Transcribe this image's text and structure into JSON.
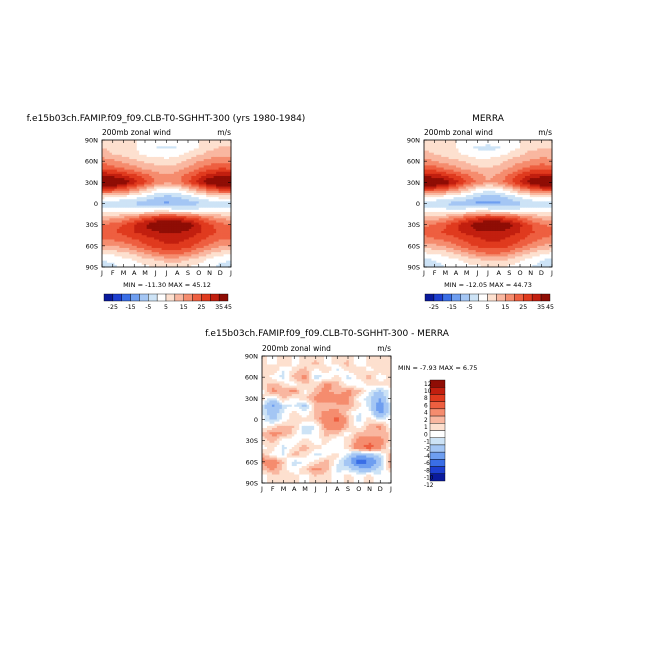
{
  "chart_data": [
    {
      "type": "heatmap",
      "title": "f.e15b03ch.FAMIP.f09_f09.CLB-T0-SGHHT-300 (yrs 1980-1984)",
      "subtitle": "200mb zonal wind",
      "units": "m/s",
      "stats": "MIN = -11.30 MAX = 45.12",
      "x_ticks": [
        "J",
        "F",
        "M",
        "A",
        "M",
        "J",
        "J",
        "A",
        "S",
        "O",
        "N",
        "D",
        "J"
      ],
      "y_ticks": [
        "90N",
        "60N",
        "30N",
        "0",
        "30S",
        "60S",
        "90S"
      ],
      "colorbar_labels": [
        "-25",
        "-15",
        "-5",
        "5",
        "15",
        "25",
        "35",
        "45"
      ],
      "colorbar_colors": [
        "#0a1a9c",
        "#1d3fd0",
        "#3a6ee6",
        "#6e9ef0",
        "#a4c6f4",
        "#cde3f6",
        "#ffffff",
        "#fde0cf",
        "#f9b7a0",
        "#f58c6e",
        "#ee5f40",
        "#e03a1e",
        "#c21f0f",
        "#8f0d05"
      ],
      "bands": [
        {
          "lat": 90,
          "lon": [
            5,
            5,
            5,
            5,
            5,
            5,
            5,
            5,
            5,
            5,
            5,
            5,
            5
          ]
        },
        {
          "lat": 80,
          "lon": [
            10,
            8,
            7,
            6,
            2,
            0,
            -1,
            0,
            2,
            5,
            8,
            10,
            10
          ]
        },
        {
          "lat": 70,
          "lon": [
            13,
            10,
            8,
            6,
            4,
            3,
            2,
            3,
            6,
            9,
            12,
            14,
            13
          ]
        },
        {
          "lat": 60,
          "lon": [
            18,
            16,
            14,
            11,
            9,
            8,
            7,
            8,
            11,
            15,
            17,
            18,
            18
          ]
        },
        {
          "lat": 50,
          "lon": [
            24,
            22,
            20,
            17,
            14,
            12,
            11,
            13,
            16,
            20,
            23,
            25,
            24
          ]
        },
        {
          "lat": 40,
          "lon": [
            34,
            33,
            30,
            26,
            22,
            18,
            15,
            17,
            22,
            27,
            32,
            34,
            34
          ]
        },
        {
          "lat": 30,
          "lon": [
            45,
            44,
            40,
            33,
            26,
            20,
            16,
            18,
            25,
            32,
            40,
            44,
            45
          ]
        },
        {
          "lat": 20,
          "lon": [
            28,
            27,
            23,
            18,
            12,
            6,
            3,
            5,
            10,
            17,
            23,
            27,
            28
          ]
        },
        {
          "lat": 10,
          "lon": [
            8,
            7,
            5,
            3,
            0,
            -4,
            -6,
            -5,
            -2,
            2,
            5,
            8,
            8
          ]
        },
        {
          "lat": 0,
          "lon": [
            -3,
            -4,
            -5,
            -6,
            -8,
            -10,
            -11,
            -10,
            -8,
            -6,
            -4,
            -3,
            -3
          ]
        },
        {
          "lat": -10,
          "lon": [
            3,
            3,
            2,
            2,
            3,
            4,
            4,
            3,
            2,
            2,
            3,
            3,
            3
          ]
        },
        {
          "lat": -20,
          "lon": [
            12,
            13,
            15,
            19,
            24,
            28,
            30,
            29,
            26,
            22,
            17,
            14,
            12
          ]
        },
        {
          "lat": -30,
          "lon": [
            20,
            22,
            25,
            30,
            35,
            40,
            43,
            42,
            38,
            32,
            26,
            22,
            20
          ]
        },
        {
          "lat": -40,
          "lon": [
            22,
            24,
            27,
            30,
            33,
            35,
            36,
            36,
            34,
            31,
            27,
            24,
            22
          ]
        },
        {
          "lat": -50,
          "lon": [
            20,
            21,
            23,
            25,
            28,
            30,
            32,
            32,
            30,
            27,
            24,
            21,
            20
          ]
        },
        {
          "lat": -60,
          "lon": [
            14,
            15,
            17,
            20,
            24,
            27,
            29,
            29,
            27,
            23,
            19,
            16,
            14
          ]
        },
        {
          "lat": -70,
          "lon": [
            6,
            7,
            9,
            12,
            16,
            20,
            22,
            22,
            19,
            15,
            11,
            8,
            6
          ]
        },
        {
          "lat": -80,
          "lon": [
            0,
            1,
            3,
            5,
            8,
            10,
            12,
            12,
            10,
            7,
            4,
            1,
            0
          ]
        },
        {
          "lat": -90,
          "lon": [
            -2,
            -1,
            1,
            2,
            4,
            5,
            6,
            6,
            5,
            3,
            1,
            -1,
            -2
          ]
        }
      ]
    },
    {
      "type": "heatmap",
      "title": "MERRA",
      "subtitle": "200mb zonal wind",
      "units": "m/s",
      "stats": "MIN = -12.05 MAX = 44.73",
      "x_ticks": [
        "J",
        "F",
        "M",
        "A",
        "M",
        "J",
        "J",
        "A",
        "S",
        "O",
        "N",
        "D",
        "J"
      ],
      "y_ticks": [
        "90N",
        "60N",
        "30N",
        "0",
        "30S",
        "60S",
        "90S"
      ],
      "colorbar_labels": [
        "-25",
        "-15",
        "-5",
        "5",
        "15",
        "25",
        "35",
        "45"
      ],
      "colorbar_colors": [
        "#0a1a9c",
        "#1d3fd0",
        "#3a6ee6",
        "#6e9ef0",
        "#a4c6f4",
        "#cde3f6",
        "#ffffff",
        "#fde0cf",
        "#f9b7a0",
        "#f58c6e",
        "#ee5f40",
        "#e03a1e",
        "#c21f0f",
        "#8f0d05"
      ],
      "bands": [
        {
          "lat": 90,
          "lon": [
            5,
            5,
            5,
            5,
            5,
            5,
            5,
            5,
            5,
            5,
            5,
            5,
            5
          ]
        },
        {
          "lat": 80,
          "lon": [
            9,
            8,
            6,
            5,
            2,
            -1,
            -2,
            -1,
            2,
            5,
            8,
            9,
            9
          ]
        },
        {
          "lat": 70,
          "lon": [
            12,
            10,
            8,
            6,
            4,
            2,
            2,
            3,
            6,
            9,
            12,
            13,
            12
          ]
        },
        {
          "lat": 60,
          "lon": [
            17,
            15,
            13,
            11,
            9,
            7,
            7,
            8,
            11,
            14,
            16,
            17,
            17
          ]
        },
        {
          "lat": 50,
          "lon": [
            23,
            22,
            19,
            16,
            13,
            11,
            10,
            12,
            15,
            19,
            22,
            24,
            23
          ]
        },
        {
          "lat": 40,
          "lon": [
            33,
            32,
            29,
            25,
            21,
            17,
            14,
            16,
            21,
            26,
            31,
            33,
            33
          ]
        },
        {
          "lat": 30,
          "lon": [
            44,
            43,
            39,
            32,
            25,
            19,
            15,
            17,
            24,
            31,
            39,
            43,
            44
          ]
        },
        {
          "lat": 20,
          "lon": [
            27,
            26,
            22,
            17,
            11,
            5,
            2,
            4,
            9,
            16,
            22,
            26,
            27
          ]
        },
        {
          "lat": 10,
          "lon": [
            7,
            6,
            4,
            2,
            -1,
            -5,
            -7,
            -6,
            -3,
            1,
            4,
            7,
            7
          ]
        },
        {
          "lat": 0,
          "lon": [
            -3,
            -4,
            -6,
            -7,
            -9,
            -11,
            -12,
            -11,
            -9,
            -6,
            -4,
            -3,
            -3
          ]
        },
        {
          "lat": -10,
          "lon": [
            2,
            2,
            2,
            2,
            3,
            4,
            4,
            3,
            2,
            2,
            2,
            2,
            2
          ]
        },
        {
          "lat": -20,
          "lon": [
            11,
            12,
            14,
            18,
            23,
            27,
            29,
            28,
            25,
            21,
            16,
            13,
            11
          ]
        },
        {
          "lat": -30,
          "lon": [
            19,
            21,
            24,
            29,
            34,
            39,
            42,
            41,
            37,
            31,
            25,
            21,
            19
          ]
        },
        {
          "lat": -40,
          "lon": [
            21,
            23,
            26,
            29,
            32,
            34,
            35,
            35,
            33,
            30,
            26,
            23,
            21
          ]
        },
        {
          "lat": -50,
          "lon": [
            19,
            20,
            22,
            24,
            27,
            29,
            31,
            31,
            29,
            26,
            23,
            20,
            19
          ]
        },
        {
          "lat": -60,
          "lon": [
            13,
            14,
            16,
            19,
            23,
            26,
            28,
            28,
            26,
            22,
            18,
            15,
            13
          ]
        },
        {
          "lat": -70,
          "lon": [
            5,
            6,
            8,
            11,
            15,
            19,
            21,
            21,
            18,
            14,
            10,
            7,
            5
          ]
        },
        {
          "lat": -80,
          "lon": [
            -1,
            0,
            2,
            4,
            7,
            9,
            11,
            11,
            9,
            6,
            3,
            0,
            -1
          ]
        },
        {
          "lat": -90,
          "lon": [
            -3,
            -2,
            0,
            1,
            3,
            4,
            5,
            5,
            4,
            2,
            0,
            -2,
            -3
          ]
        }
      ]
    },
    {
      "type": "heatmap",
      "title": "f.e15b03ch.FAMIP.f09_f09.CLB-T0-SGHHT-300 - MERRA",
      "subtitle": "200mb zonal wind",
      "units": "m/s",
      "stats": "MIN = -7.93 MAX = 6.75",
      "x_ticks": [
        "J",
        "F",
        "M",
        "A",
        "M",
        "J",
        "J",
        "A",
        "S",
        "O",
        "N",
        "D",
        "J"
      ],
      "y_ticks": [
        "90N",
        "60N",
        "30N",
        "0",
        "30S",
        "60S",
        "90S"
      ],
      "colorbar_labels": [
        "12",
        "10",
        "8",
        "6",
        "4",
        "2",
        "1",
        "0",
        "-1",
        "-2",
        "-4",
        "-6",
        "-8",
        "-10",
        "-12"
      ],
      "colorbar_colors": [
        "#8f0d05",
        "#c21f0f",
        "#e03a1e",
        "#ee5f40",
        "#f58c6e",
        "#f9b7a0",
        "#fde0cf",
        "#ffffff",
        "#cde3f6",
        "#a4c6f4",
        "#6e9ef0",
        "#3a6ee6",
        "#1d3fd0",
        "#0a1a9c"
      ],
      "bands": [
        {
          "lat": 90,
          "lon": [
            0,
            0,
            0,
            0,
            0,
            0,
            0,
            0,
            0,
            0,
            0,
            0,
            0
          ]
        },
        {
          "lat": 80,
          "lon": [
            0.5,
            -0.5,
            1,
            -0.5,
            0.5,
            1.5,
            -0.5,
            0.5,
            1.5,
            -1,
            0.5,
            0.5,
            0.5
          ]
        },
        {
          "lat": 70,
          "lon": [
            0.5,
            1,
            -1,
            0.5,
            1.5,
            -0.5,
            1,
            -1.5,
            0.5,
            1,
            -0.5,
            1,
            0.5
          ]
        },
        {
          "lat": 60,
          "lon": [
            1,
            -0.5,
            -1.5,
            1.5,
            2.5,
            -1.5,
            -1,
            0.5,
            -1.5,
            0.5,
            1.5,
            -1,
            1
          ]
        },
        {
          "lat": 50,
          "lon": [
            0.5,
            1.5,
            0.5,
            -0.5,
            1,
            0.5,
            2.5,
            1.5,
            -0.5,
            -1,
            0.5,
            0.5,
            0.5
          ]
        },
        {
          "lat": 40,
          "lon": [
            -0.5,
            2.5,
            1.5,
            2.5,
            -0.5,
            1.5,
            2.5,
            1,
            2.5,
            1.5,
            -1,
            -2.5,
            -0.5
          ]
        },
        {
          "lat": 30,
          "lon": [
            0.5,
            -1.5,
            1.5,
            -0.5,
            1,
            2.5,
            3,
            3.5,
            2.5,
            -0.5,
            -1.5,
            -4,
            0.5
          ]
        },
        {
          "lat": 20,
          "lon": [
            -1,
            -4.5,
            -1.5,
            -1,
            -2.5,
            1.5,
            1,
            1.5,
            2,
            0.5,
            -1.5,
            -6,
            -1
          ]
        },
        {
          "lat": 10,
          "lon": [
            -1,
            -3,
            -1,
            0.5,
            -1,
            1.5,
            2.5,
            2.5,
            0.5,
            -1,
            -0.5,
            -5,
            -1
          ]
        },
        {
          "lat": 0,
          "lon": [
            -0.5,
            -2.5,
            -0.5,
            0.5,
            0.5,
            1,
            3.5,
            4.5,
            1.5,
            -1.5,
            0.5,
            -1,
            -0.5
          ]
        },
        {
          "lat": -10,
          "lon": [
            -0.5,
            0.5,
            1.5,
            1,
            -1.5,
            -1,
            2.5,
            3.5,
            1,
            -0.5,
            1.5,
            2.5,
            -0.5
          ]
        },
        {
          "lat": -20,
          "lon": [
            1,
            2.5,
            2,
            0.5,
            -1.5,
            -0.5,
            1.5,
            1,
            -0.5,
            1.5,
            1,
            1.5,
            1
          ]
        },
        {
          "lat": -30,
          "lon": [
            0.5,
            1.5,
            -0.5,
            -1,
            0.5,
            -0.5,
            0.5,
            -1,
            0.5,
            2.5,
            3.5,
            2.5,
            0.5
          ]
        },
        {
          "lat": -40,
          "lon": [
            -0.5,
            0.5,
            -1.5,
            0.5,
            1.5,
            0.5,
            -0.5,
            -1,
            0.5,
            3.5,
            5,
            2.5,
            -0.5
          ]
        },
        {
          "lat": -50,
          "lon": [
            1.5,
            -0.5,
            -1,
            1.5,
            0.5,
            -1.5,
            -0.5,
            0.5,
            -1.5,
            -4,
            -3,
            -1.5,
            1.5
          ]
        },
        {
          "lat": -60,
          "lon": [
            2.5,
            3.5,
            1,
            -1.5,
            -1,
            0.5,
            1.5,
            -0.5,
            -3.5,
            -7.5,
            -6,
            -3,
            2.5
          ]
        },
        {
          "lat": -70,
          "lon": [
            1,
            2.5,
            0.5,
            -1,
            1,
            2.5,
            1.5,
            -1.5,
            -1.5,
            -3,
            -3.5,
            -1.5,
            1
          ]
        },
        {
          "lat": -80,
          "lon": [
            -0.5,
            0.5,
            1,
            0.5,
            -0.5,
            1,
            0.5,
            -0.5,
            0.5,
            -0.5,
            0.5,
            -1,
            -0.5
          ]
        },
        {
          "lat": -90,
          "lon": [
            0,
            0,
            0,
            0,
            0,
            0,
            0,
            0,
            0,
            0,
            0,
            0,
            0
          ]
        }
      ]
    }
  ]
}
